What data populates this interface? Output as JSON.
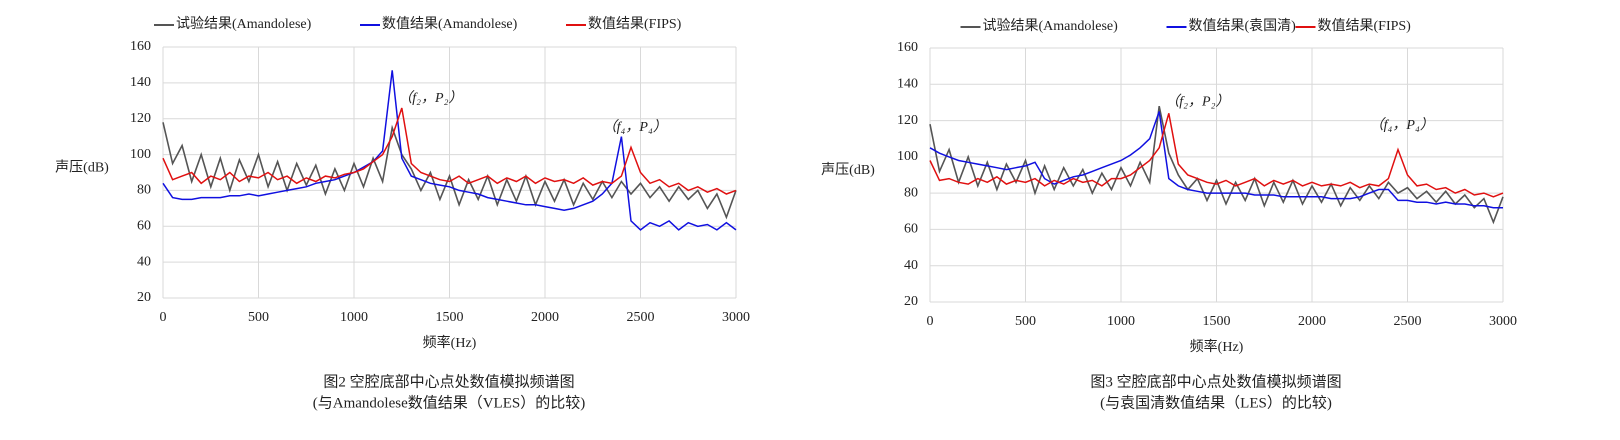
{
  "chart_data": [
    {
      "type": "line",
      "legend": "top",
      "grid": true,
      "ylabel": "声压(dB)",
      "xlabel": "频率(Hz)",
      "caption": [
        "图2 空腔底部中心点处数值模拟频谱图",
        "(与Amandolese数值结果（VLES）的比较)"
      ],
      "annotations": [
        "（f₂，P₂）",
        "（f₄，P₄）"
      ],
      "xlim": [
        0,
        3000
      ],
      "xticks": [
        0,
        500,
        1000,
        1500,
        2000,
        2500,
        3000
      ],
      "ylim": [
        20,
        160
      ],
      "yticks": [
        20,
        40,
        60,
        80,
        100,
        120,
        140,
        160
      ],
      "x": [
        0,
        50,
        100,
        150,
        200,
        250,
        300,
        350,
        400,
        450,
        500,
        550,
        600,
        650,
        700,
        750,
        800,
        850,
        900,
        950,
        1000,
        1050,
        1100,
        1150,
        1200,
        1250,
        1300,
        1350,
        1400,
        1450,
        1500,
        1550,
        1600,
        1650,
        1700,
        1750,
        1800,
        1850,
        1900,
        1950,
        2000,
        2050,
        2100,
        2150,
        2200,
        2250,
        2300,
        2350,
        2400,
        2450,
        2500,
        2550,
        2600,
        2650,
        2700,
        2750,
        2800,
        2850,
        2900,
        2950,
        3000
      ],
      "series": [
        {
          "name": "试验结果(Amandolese)",
          "color": "#555555",
          "values": [
            118,
            95,
            105,
            85,
            100,
            82,
            98,
            80,
            97,
            85,
            100,
            82,
            96,
            80,
            95,
            83,
            94,
            78,
            92,
            80,
            95,
            82,
            98,
            85,
            115,
            100,
            92,
            80,
            90,
            75,
            88,
            72,
            86,
            75,
            88,
            72,
            86,
            74,
            88,
            72,
            85,
            74,
            86,
            72,
            84,
            75,
            85,
            76,
            85,
            78,
            84,
            76,
            82,
            74,
            82,
            75,
            80,
            70,
            78,
            65,
            80
          ]
        },
        {
          "name": "数值结果(Amandolese)",
          "color": "#1010e0",
          "values": [
            84,
            76,
            75,
            75,
            76,
            76,
            76,
            77,
            77,
            78,
            77,
            78,
            79,
            80,
            81,
            82,
            84,
            85,
            86,
            88,
            90,
            93,
            96,
            102,
            147,
            98,
            88,
            86,
            84,
            83,
            82,
            80,
            79,
            78,
            76,
            75,
            74,
            73,
            72,
            72,
            71,
            70,
            69,
            70,
            72,
            74,
            78,
            84,
            110,
            63,
            58,
            62,
            60,
            63,
            58,
            62,
            60,
            61,
            58,
            62,
            58
          ]
        },
        {
          "name": "数值结果(FIPS)",
          "color": "#e01010",
          "values": [
            98,
            86,
            88,
            90,
            84,
            88,
            86,
            90,
            85,
            88,
            87,
            90,
            86,
            88,
            84,
            87,
            85,
            88,
            87,
            89,
            90,
            92,
            96,
            100,
            110,
            126,
            95,
            90,
            88,
            86,
            85,
            88,
            84,
            86,
            88,
            84,
            87,
            85,
            88,
            84,
            87,
            85,
            86,
            84,
            87,
            83,
            85,
            84,
            88,
            104,
            90,
            84,
            86,
            82,
            84,
            80,
            82,
            79,
            81,
            78,
            80
          ]
        }
      ]
    },
    {
      "type": "line",
      "legend": "top",
      "grid": true,
      "ylabel": "声压(dB)",
      "xlabel": "频率(Hz)",
      "caption": [
        "图3 空腔底部中心点处数值模拟频谱图",
        "(与袁国清数值结果（LES）的比较)"
      ],
      "annotations": [
        "（f₂，P₂）",
        "（f₄，P₄）"
      ],
      "xlim": [
        0,
        3000
      ],
      "xticks": [
        0,
        500,
        1000,
        1500,
        2000,
        2500,
        3000
      ],
      "ylim": [
        20,
        160
      ],
      "yticks": [
        20,
        40,
        60,
        80,
        100,
        120,
        140,
        160
      ],
      "x": [
        0,
        50,
        100,
        150,
        200,
        250,
        300,
        350,
        400,
        450,
        500,
        550,
        600,
        650,
        700,
        750,
        800,
        850,
        900,
        950,
        1000,
        1050,
        1100,
        1150,
        1200,
        1250,
        1300,
        1350,
        1400,
        1450,
        1500,
        1550,
        1600,
        1650,
        1700,
        1750,
        1800,
        1850,
        1900,
        1950,
        2000,
        2050,
        2100,
        2150,
        2200,
        2250,
        2300,
        2350,
        2400,
        2450,
        2500,
        2550,
        2600,
        2650,
        2700,
        2750,
        2800,
        2850,
        2900,
        2950,
        3000
      ],
      "series": [
        {
          "name": "试验结果(Amandolese)",
          "color": "#555555",
          "values": [
            118,
            92,
            104,
            86,
            100,
            84,
            97,
            82,
            96,
            86,
            98,
            80,
            95,
            82,
            94,
            84,
            93,
            80,
            91,
            82,
            94,
            84,
            97,
            86,
            128,
            102,
            90,
            82,
            88,
            76,
            87,
            74,
            86,
            76,
            88,
            73,
            86,
            75,
            87,
            74,
            84,
            75,
            85,
            73,
            83,
            76,
            84,
            77,
            86,
            80,
            83,
            77,
            81,
            75,
            81,
            74,
            79,
            72,
            77,
            64,
            78
          ]
        },
        {
          "name": "数值结果(袁国清)",
          "color": "#1010e0",
          "values": [
            105,
            102,
            100,
            98,
            97,
            96,
            95,
            94,
            93,
            94,
            95,
            97,
            88,
            85,
            87,
            89,
            90,
            92,
            94,
            96,
            98,
            101,
            105,
            110,
            125,
            88,
            84,
            82,
            81,
            80,
            80,
            80,
            80,
            80,
            79,
            79,
            79,
            78,
            78,
            78,
            78,
            78,
            77,
            77,
            77,
            78,
            80,
            82,
            82,
            76,
            76,
            75,
            75,
            74,
            75,
            74,
            74,
            73,
            73,
            72,
            72
          ]
        },
        {
          "name": "数值结果(FIPS)",
          "color": "#e01010",
          "values": [
            98,
            87,
            88,
            86,
            85,
            88,
            86,
            89,
            85,
            87,
            86,
            88,
            84,
            87,
            85,
            88,
            86,
            87,
            84,
            88,
            88,
            90,
            94,
            98,
            105,
            124,
            96,
            90,
            88,
            86,
            85,
            87,
            84,
            86,
            88,
            84,
            87,
            85,
            87,
            84,
            86,
            84,
            85,
            84,
            86,
            83,
            85,
            84,
            88,
            104,
            90,
            84,
            85,
            82,
            83,
            80,
            82,
            79,
            80,
            78,
            80
          ]
        }
      ]
    }
  ]
}
